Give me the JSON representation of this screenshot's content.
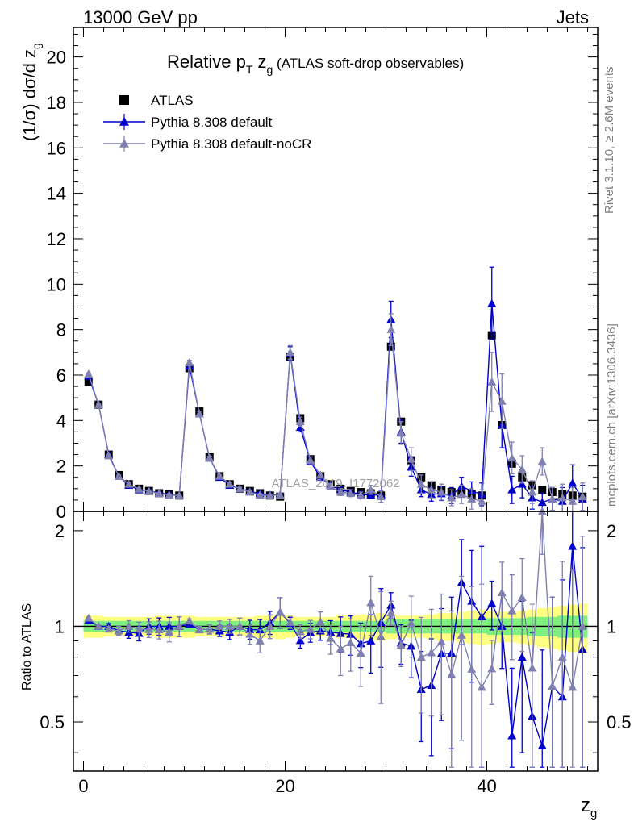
{
  "header": {
    "left": "13000 GeV pp",
    "right": "Jets"
  },
  "side_text": {
    "rivet": "Rivet 3.1.10, ≥ 2.6M events",
    "mcplots": "mcplots.cern.ch [arXiv:1306.3436]"
  },
  "watermark": "ATLAS_2019_I1772062",
  "chart_data": {
    "type": "scatter",
    "title": {
      "prefix": "Relative p",
      "sub1": "T",
      "mid": " z",
      "sub2": "g",
      "suffix": " (ATLAS soft-drop observables)"
    },
    "ylabel": {
      "main": "(1/σ) dσ/d z",
      "sub": "g"
    },
    "xlabel": {
      "main": "z",
      "sub": "g"
    },
    "ratio_ylabel": "Ratio to ATLAS",
    "xlim": [
      -1,
      51
    ],
    "ylim": [
      0,
      21.3
    ],
    "ratio_ylim": [
      0.35,
      2.3
    ],
    "ratio_scale": "log",
    "xticks": [
      "0",
      "20",
      "40"
    ],
    "xtick_values": [
      0,
      20,
      40
    ],
    "yticks": [
      "0",
      "2",
      "4",
      "6",
      "8",
      "10",
      "12",
      "14",
      "16",
      "18",
      "20"
    ],
    "ytick_values": [
      0,
      2,
      4,
      6,
      8,
      10,
      12,
      14,
      16,
      18,
      20
    ],
    "ratio_yticks": [
      "0.5",
      "1",
      "2"
    ],
    "ratio_ytick_values": [
      0.5,
      1,
      2
    ],
    "legend_position": "top-left",
    "colors": {
      "atlas": "#000000",
      "default": "#0000cc",
      "noCR": "#8080b0",
      "band_inner": "#7ff07f",
      "band_outer": "#ffff80"
    },
    "x": [
      0.5,
      1.5,
      2.5,
      3.5,
      4.5,
      5.5,
      6.5,
      7.5,
      8.5,
      9.5,
      10.5,
      11.5,
      12.5,
      13.5,
      14.5,
      15.5,
      16.5,
      17.5,
      18.5,
      19.5,
      20.5,
      21.5,
      22.5,
      23.5,
      24.5,
      25.5,
      26.5,
      27.5,
      28.5,
      29.5,
      30.5,
      31.5,
      32.5,
      33.5,
      34.5,
      35.5,
      36.5,
      37.5,
      38.5,
      39.5,
      40.5,
      41.5,
      42.5,
      43.5,
      44.5,
      45.5,
      46.5,
      47.5,
      48.5,
      49.5
    ],
    "series": [
      {
        "name": "ATLAS",
        "marker": "square",
        "values": [
          5.7,
          4.7,
          2.5,
          1.6,
          1.2,
          1.0,
          0.9,
          0.8,
          0.75,
          0.7,
          6.3,
          4.4,
          2.4,
          1.55,
          1.2,
          1.0,
          0.9,
          0.8,
          0.7,
          0.65,
          6.8,
          4.1,
          2.3,
          1.55,
          1.2,
          1.0,
          0.9,
          0.85,
          0.8,
          0.7,
          7.25,
          3.95,
          2.25,
          1.5,
          1.15,
          0.95,
          0.85,
          0.8,
          0.75,
          0.7,
          7.75,
          3.8,
          2.1,
          1.5,
          1.15,
          0.95,
          0.85,
          0.75,
          0.7,
          0.65
        ],
        "band_inner": [
          0.04,
          0.04,
          0.04,
          0.04,
          0.04,
          0.04,
          0.04,
          0.04,
          0.04,
          0.04,
          0.04,
          0.04,
          0.04,
          0.04,
          0.04,
          0.04,
          0.04,
          0.04,
          0.04,
          0.04,
          0.04,
          0.04,
          0.04,
          0.04,
          0.04,
          0.04,
          0.04,
          0.04,
          0.04,
          0.04,
          0.05,
          0.05,
          0.05,
          0.05,
          0.05,
          0.05,
          0.05,
          0.05,
          0.05,
          0.05,
          0.06,
          0.06,
          0.06,
          0.06,
          0.07,
          0.07,
          0.07,
          0.08,
          0.08,
          0.08
        ],
        "band_outer": [
          0.08,
          0.08,
          0.07,
          0.07,
          0.07,
          0.07,
          0.07,
          0.08,
          0.08,
          0.08,
          0.08,
          0.07,
          0.07,
          0.07,
          0.07,
          0.07,
          0.07,
          0.08,
          0.08,
          0.09,
          0.08,
          0.07,
          0.07,
          0.07,
          0.07,
          0.08,
          0.08,
          0.09,
          0.09,
          0.1,
          0.09,
          0.08,
          0.08,
          0.08,
          0.09,
          0.1,
          0.1,
          0.11,
          0.12,
          0.13,
          0.12,
          0.11,
          0.11,
          0.12,
          0.13,
          0.14,
          0.15,
          0.16,
          0.17,
          0.18
        ]
      },
      {
        "name": "Pythia 8.308 default",
        "marker": "triangle",
        "values": [
          5.95,
          4.7,
          2.5,
          1.55,
          1.15,
          0.95,
          0.9,
          0.8,
          0.75,
          0.7,
          6.4,
          4.3,
          2.35,
          1.5,
          1.15,
          1.0,
          0.88,
          0.78,
          0.72,
          0.72,
          6.95,
          3.7,
          2.2,
          1.5,
          1.15,
          0.95,
          0.85,
          0.75,
          0.72,
          0.72,
          8.45,
          3.5,
          1.95,
          0.95,
          0.75,
          0.78,
          0.7,
          1.1,
          0.9,
          0.75,
          9.15,
          3.8,
          0.95,
          1.2,
          0.6,
          0.4,
          0.55,
          0.45,
          1.25,
          0.55
        ],
        "errors": [
          0.05,
          0.05,
          0.05,
          0.05,
          0.05,
          0.05,
          0.05,
          0.05,
          0.05,
          0.05,
          0.1,
          0.1,
          0.08,
          0.06,
          0.06,
          0.06,
          0.06,
          0.06,
          0.06,
          0.08,
          0.3,
          0.2,
          0.15,
          0.1,
          0.1,
          0.12,
          0.12,
          0.12,
          0.15,
          0.2,
          0.8,
          0.5,
          0.4,
          0.3,
          0.3,
          0.3,
          0.35,
          0.4,
          0.4,
          0.5,
          1.6,
          1.0,
          0.6,
          0.6,
          0.5,
          0.4,
          0.5,
          0.6,
          0.8,
          0.6
        ]
      },
      {
        "name": "Pythia 8.308 default-noCR",
        "marker": "triangle",
        "values": [
          6.05,
          4.7,
          2.45,
          1.55,
          1.2,
          0.98,
          0.88,
          0.78,
          0.72,
          0.7,
          6.55,
          4.3,
          2.35,
          1.55,
          1.2,
          1.0,
          0.85,
          0.72,
          0.7,
          0.72,
          7.0,
          3.95,
          2.25,
          1.6,
          1.1,
          0.85,
          0.8,
          0.7,
          0.95,
          0.65,
          8.0,
          3.45,
          2.3,
          1.2,
          0.95,
          0.85,
          0.6,
          0.75,
          0.55,
          0.45,
          5.7,
          4.85,
          2.35,
          1.85,
          0.85,
          2.2,
          0.55,
          0.6,
          0.45,
          0.65
        ],
        "errors": [
          0.05,
          0.05,
          0.05,
          0.05,
          0.05,
          0.05,
          0.05,
          0.05,
          0.05,
          0.05,
          0.1,
          0.1,
          0.08,
          0.06,
          0.06,
          0.06,
          0.06,
          0.06,
          0.06,
          0.08,
          0.3,
          0.2,
          0.15,
          0.12,
          0.12,
          0.15,
          0.15,
          0.15,
          0.2,
          0.25,
          0.7,
          0.5,
          0.5,
          0.4,
          0.35,
          0.35,
          0.35,
          0.4,
          0.45,
          0.5,
          1.3,
          1.2,
          0.7,
          0.6,
          0.5,
          0.6,
          0.5,
          0.6,
          0.6,
          0.6
        ]
      }
    ]
  }
}
